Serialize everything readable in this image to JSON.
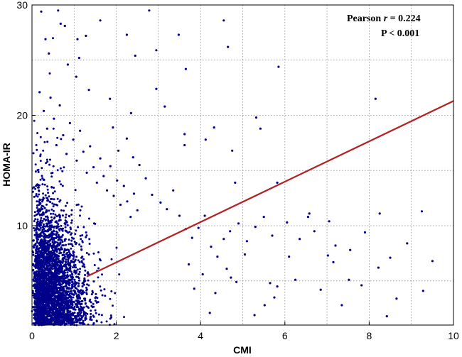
{
  "chart_data": {
    "type": "scatter",
    "title": "",
    "xlabel": "CMI",
    "ylabel": "HOMA-IR",
    "xlim": [
      0,
      10
    ],
    "ylim": [
      1,
      30
    ],
    "xticks": [
      0,
      2,
      4,
      6,
      8,
      10
    ],
    "yticks": [
      10,
      20,
      30
    ],
    "x_gridlines": [
      1,
      2,
      3,
      4,
      5,
      6,
      7,
      8,
      9
    ],
    "y_gridlines": [
      5,
      10,
      15,
      20,
      25
    ],
    "grid": true,
    "grid_style": "dotted",
    "point_color": "#00008B",
    "line_color": "#B22222",
    "annotation": {
      "pearson_prefix": "Pearson ",
      "pearson_r_symbol": "r",
      "pearson_value": " = 0.224",
      "p_text": "P < 0.001"
    },
    "series": [
      {
        "points": [
          [
            0.22,
            29.4
          ],
          [
            0.62,
            29.5
          ],
          [
            0.78,
            28.1
          ],
          [
            0.32,
            26.9
          ],
          [
            0.68,
            28.3
          ],
          [
            1.08,
            26.9
          ],
          [
            1.28,
            27.2
          ],
          [
            1.62,
            28.6
          ],
          [
            2.25,
            27.3
          ],
          [
            2.78,
            29.5
          ],
          [
            2.95,
            25.9
          ],
          [
            3.48,
            27.3
          ],
          [
            4.55,
            28.6
          ],
          [
            4.65,
            26.2
          ],
          [
            0.4,
            25.6
          ],
          [
            0.85,
            24.6
          ],
          [
            1.12,
            25.2
          ],
          [
            2.45,
            25.4
          ],
          [
            3.65,
            24.2
          ],
          [
            5.85,
            24.4
          ],
          [
            2.95,
            22.4
          ],
          [
            3.15,
            20.8
          ],
          [
            2.35,
            20.2
          ],
          [
            5.32,
            19.8
          ],
          [
            5.42,
            18.8
          ],
          [
            4.32,
            18.9
          ],
          [
            3.62,
            18.3
          ],
          [
            3.62,
            17.3
          ],
          [
            4.12,
            17.8
          ],
          [
            4.75,
            16.8
          ],
          [
            4.82,
            13.9
          ],
          [
            5.82,
            13.9
          ],
          [
            6.05,
            10.3
          ],
          [
            6.55,
            10.8
          ],
          [
            6.58,
            11.1
          ],
          [
            7.05,
            10.4
          ],
          [
            8.25,
            11.1
          ],
          [
            9.25,
            11.3
          ],
          [
            9.28,
            4.1
          ],
          [
            8.65,
            3.4
          ],
          [
            8.42,
            1.8
          ],
          [
            8.22,
            6.2
          ],
          [
            7.82,
            4.6
          ],
          [
            7.52,
            5.1
          ],
          [
            7.35,
            2.8
          ],
          [
            7.15,
            6.7
          ],
          [
            7.02,
            7.3
          ],
          [
            6.85,
            4.2
          ],
          [
            6.25,
            5.1
          ],
          [
            5.82,
            4.5
          ],
          [
            5.65,
            4.8
          ],
          [
            5.75,
            3.5
          ],
          [
            5.52,
            2.8
          ],
          [
            5.28,
            1.9
          ],
          [
            5.05,
            7.4
          ],
          [
            4.85,
            4.9
          ],
          [
            4.72,
            5.3
          ],
          [
            4.62,
            6.1
          ],
          [
            4.35,
            3.9
          ],
          [
            4.22,
            2.1
          ],
          [
            4.05,
            5.6
          ],
          [
            3.85,
            4.3
          ],
          [
            3.72,
            6.5
          ],
          [
            8.15,
            21.5
          ],
          [
            1.05,
            23.5
          ],
          [
            1.35,
            22.3
          ],
          [
            1.85,
            21.5
          ],
          [
            1.92,
            18.9
          ],
          [
            2.05,
            16.8
          ],
          [
            2.25,
            17.9
          ],
          [
            2.4,
            16.2
          ],
          [
            2.55,
            15.5
          ],
          [
            2.7,
            14.3
          ],
          [
            2.85,
            12.8
          ],
          [
            3.05,
            12.1
          ],
          [
            3.2,
            11.5
          ],
          [
            3.35,
            13.2
          ],
          [
            3.5,
            10.9
          ],
          [
            3.65,
            9.7
          ],
          [
            3.8,
            8.9
          ],
          [
            3.95,
            9.8
          ],
          [
            4.1,
            10.9
          ],
          [
            4.25,
            8.1
          ],
          [
            4.4,
            7.2
          ],
          [
            4.55,
            8.8
          ],
          [
            4.7,
            9.5
          ],
          [
            4.9,
            10.2
          ],
          [
            5.1,
            8.6
          ],
          [
            5.3,
            9.9
          ],
          [
            5.5,
            10.8
          ],
          [
            5.7,
            9.1
          ],
          [
            6.1,
            7.2
          ],
          [
            6.35,
            8.8
          ],
          [
            6.7,
            9.5
          ],
          [
            7.2,
            8.2
          ],
          [
            7.55,
            7.8
          ],
          [
            7.9,
            9.4
          ],
          [
            8.5,
            7.1
          ],
          [
            8.9,
            8.4
          ],
          [
            9.5,
            6.8
          ],
          [
            0.18,
            22.1
          ],
          [
            0.28,
            20.4
          ],
          [
            0.36,
            18.8
          ],
          [
            0.44,
            21.6
          ],
          [
            0.52,
            19.7
          ],
          [
            0.58,
            17.3
          ],
          [
            0.66,
            20.9
          ],
          [
            0.74,
            18.2
          ],
          [
            0.82,
            16.5
          ],
          [
            0.9,
            19.3
          ],
          [
            0.98,
            17.8
          ],
          [
            1.06,
            15.9
          ],
          [
            1.14,
            18.6
          ],
          [
            1.22,
            16.7
          ],
          [
            1.3,
            14.8
          ],
          [
            1.38,
            17.2
          ],
          [
            1.46,
            15.3
          ],
          [
            1.54,
            13.9
          ],
          [
            1.62,
            16.1
          ],
          [
            1.7,
            14.5
          ],
          [
            1.78,
            13.2
          ],
          [
            1.86,
            15.4
          ],
          [
            1.94,
            12.7
          ],
          [
            2.02,
            14.1
          ],
          [
            2.1,
            11.9
          ],
          [
            2.18,
            13.6
          ],
          [
            2.26,
            12.2
          ],
          [
            2.34,
            10.8
          ],
          [
            2.42,
            12.9
          ],
          [
            2.5,
            11.4
          ]
        ]
      }
    ],
    "regression_line": {
      "x_start": 1.3,
      "y_start": 5.4,
      "x_end": 10,
      "y_end": 21.3
    }
  }
}
